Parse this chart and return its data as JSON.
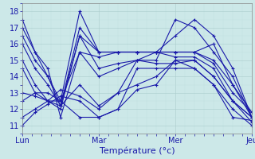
{
  "title": "",
  "xlabel": "Température (°c)",
  "ylabel": "",
  "xlim": [
    0,
    72
  ],
  "ylim": [
    10.5,
    18.5
  ],
  "yticks": [
    11,
    12,
    13,
    14,
    15,
    16,
    17,
    18
  ],
  "xtick_positions": [
    0,
    24,
    48,
    72
  ],
  "xtick_labels": [
    "Lun",
    "Mar",
    "Mer",
    "Jeu"
  ],
  "bg_color": "#cce8e8",
  "line_color": "#1a1aaa",
  "marker": "+",
  "series": [
    [
      0,
      11.0,
      4,
      11.8,
      8,
      12.3,
      12,
      12.8,
      18,
      12.5,
      24,
      11.5,
      30,
      12.0,
      36,
      14.5,
      42,
      14.5,
      48,
      14.5,
      54,
      14.5,
      60,
      13.5,
      66,
      12.0,
      72,
      11.0
    ],
    [
      0,
      11.5,
      4,
      12.0,
      8,
      12.5,
      12,
      13.2,
      18,
      12.8,
      24,
      12.0,
      30,
      13.0,
      36,
      15.0,
      42,
      14.8,
      48,
      14.8,
      54,
      15.0,
      60,
      14.0,
      66,
      12.5,
      72,
      11.2
    ],
    [
      0,
      12.5,
      4,
      13.0,
      8,
      13.0,
      12,
      12.5,
      18,
      11.5,
      24,
      11.5,
      30,
      12.0,
      36,
      13.2,
      42,
      13.5,
      48,
      15.0,
      54,
      15.0,
      60,
      14.0,
      66,
      12.5,
      72,
      11.5
    ],
    [
      0,
      13.0,
      4,
      12.8,
      8,
      12.5,
      12,
      12.2,
      18,
      13.5,
      24,
      12.2,
      30,
      13.0,
      36,
      13.5,
      42,
      14.0,
      48,
      15.0,
      54,
      14.5,
      60,
      13.5,
      66,
      11.5,
      72,
      11.3
    ],
    [
      0,
      14.5,
      4,
      13.0,
      8,
      12.5,
      12,
      12.5,
      18,
      15.5,
      24,
      15.2,
      30,
      15.5,
      36,
      15.5,
      42,
      15.5,
      48,
      15.5,
      54,
      15.5,
      60,
      15.0,
      66,
      13.5,
      72,
      11.5
    ],
    [
      0,
      15.0,
      4,
      13.5,
      8,
      12.5,
      12,
      12.0,
      18,
      16.5,
      24,
      15.5,
      30,
      15.5,
      36,
      15.5,
      42,
      15.5,
      48,
      15.2,
      54,
      15.2,
      60,
      14.5,
      66,
      12.5,
      72,
      11.5
    ],
    [
      0,
      16.0,
      4,
      14.5,
      8,
      13.5,
      12,
      12.2,
      18,
      17.0,
      24,
      15.5,
      30,
      15.5,
      36,
      15.5,
      42,
      15.5,
      48,
      15.5,
      54,
      15.5,
      60,
      14.8,
      66,
      13.0,
      72,
      11.8
    ],
    [
      0,
      16.5,
      4,
      15.0,
      8,
      14.0,
      12,
      12.5,
      18,
      18.0,
      24,
      15.5,
      30,
      15.5,
      36,
      15.5,
      42,
      15.5,
      48,
      15.5,
      54,
      15.5,
      60,
      16.0,
      66,
      13.5,
      72,
      11.8
    ],
    [
      0,
      17.0,
      4,
      15.5,
      8,
      14.0,
      12,
      12.2,
      18,
      16.5,
      24,
      14.5,
      30,
      14.8,
      36,
      15.0,
      42,
      15.0,
      48,
      17.5,
      54,
      17.0,
      60,
      15.5,
      66,
      14.0,
      72,
      11.5
    ],
    [
      0,
      17.5,
      4,
      15.5,
      8,
      14.5,
      12,
      11.5,
      18,
      15.5,
      24,
      14.0,
      30,
      14.5,
      36,
      15.0,
      42,
      15.5,
      48,
      16.5,
      54,
      17.5,
      60,
      16.5,
      66,
      14.5,
      72,
      11.5
    ]
  ]
}
